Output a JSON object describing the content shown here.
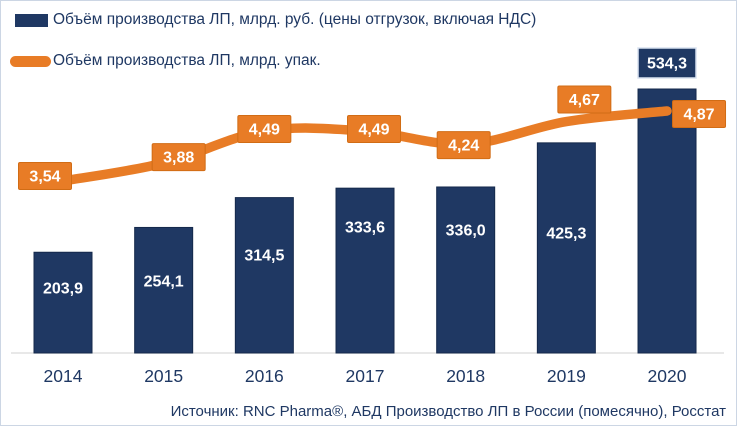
{
  "colors": {
    "navy": "#1F3863",
    "navy_border": "#15294B",
    "orange": "#E87C26",
    "orange_border": "#D16C15",
    "axis": "#D9D9D9",
    "label_text": "#FFFFFF",
    "callout_border": "#D9E2F0"
  },
  "legend": {
    "items": [
      {
        "label": "Объём производства ЛП, млрд. руб. (цены отгрузок, включая НДС)",
        "swatch": "bar"
      },
      {
        "label": "Объём производства ЛП, млрд. упак.",
        "swatch": "line"
      }
    ]
  },
  "footer": {
    "text": "Источник: RNC Pharma®, АБД Производство ЛП в России (помесячно), Росстат"
  },
  "chart_data": {
    "type": "bar",
    "subtype": "bar+line combo",
    "categories": [
      "2014",
      "2015",
      "2016",
      "2017",
      "2018",
      "2019",
      "2020"
    ],
    "series": [
      {
        "name": "Объём производства ЛП, млрд. руб. (цены отгрузок, включая НДС)",
        "type": "bar",
        "values": [
          203.9,
          254.1,
          314.5,
          333.6,
          336.0,
          425.3,
          534.3
        ],
        "labels": [
          "203,9",
          "254,1",
          "314,5",
          "333,6",
          "336,0",
          "425,3",
          "534,3"
        ]
      },
      {
        "name": "Объём производства ЛП, млрд. упак.",
        "type": "line",
        "values": [
          3.54,
          3.88,
          4.49,
          4.49,
          4.24,
          4.67,
          4.87
        ],
        "labels": [
          "3,54",
          "3,88",
          "4,49",
          "4,49",
          "4,24",
          "4,67",
          "4,87"
        ]
      }
    ],
    "ylim_bar": [
      0,
      540
    ],
    "ylim_line": [
      0,
      5.5
    ],
    "grid": false,
    "y_axis_visible": false,
    "legend_position": "top-left"
  }
}
